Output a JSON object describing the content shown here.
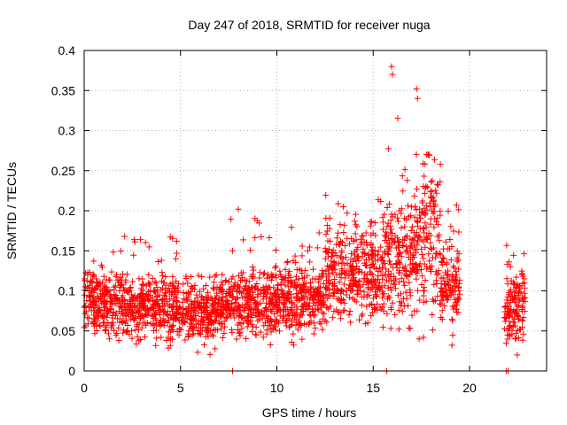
{
  "chart_data": {
    "type": "scatter",
    "title": "Day 247 of 2018, SRMTID for receiver nuga",
    "xlabel": "GPS time / hours",
    "ylabel": "SRMTID / TECUs",
    "xlim": [
      0,
      24
    ],
    "ylim": [
      0,
      0.4
    ],
    "xticks": [
      0,
      5,
      10,
      15,
      20
    ],
    "xtick_labels": [
      "0",
      "5",
      "10",
      "15",
      "20"
    ],
    "yticks": [
      0,
      0.05,
      0.1,
      0.15,
      0.2,
      0.25,
      0.3,
      0.35,
      0.4
    ],
    "ytick_labels": [
      "0",
      "0.05",
      "0.1",
      "0.15",
      "0.2",
      "0.25",
      "0.3",
      "0.35",
      "0.4"
    ],
    "grid": true,
    "marker": "+",
    "series": [
      {
        "name": "SRMTID",
        "color": "#ff0000",
        "segments": [
          {
            "t_start": 0.0,
            "t_end": 2.0,
            "mean": 0.085,
            "spread": 0.02,
            "peak": 0.15
          },
          {
            "t_start": 2.0,
            "t_end": 5.0,
            "mean": 0.08,
            "spread": 0.02,
            "peak": 0.17
          },
          {
            "t_start": 5.0,
            "t_end": 7.5,
            "mean": 0.075,
            "spread": 0.018,
            "peak": 0.12
          },
          {
            "t_start": 7.5,
            "t_end": 10.0,
            "mean": 0.085,
            "spread": 0.02,
            "peak": 0.2
          },
          {
            "t_start": 10.0,
            "t_end": 12.5,
            "mean": 0.09,
            "spread": 0.022,
            "peak": 0.18
          },
          {
            "t_start": 12.5,
            "t_end": 15.5,
            "mean": 0.12,
            "spread": 0.028,
            "peak": 0.23
          },
          {
            "t_start": 15.5,
            "t_end": 16.5,
            "mean": 0.14,
            "spread": 0.04,
            "peak": 0.38
          },
          {
            "t_start": 16.5,
            "t_end": 17.5,
            "mean": 0.15,
            "spread": 0.045,
            "peak": 0.35
          },
          {
            "t_start": 17.5,
            "t_end": 18.5,
            "mean": 0.17,
            "spread": 0.05,
            "peak": 0.27
          },
          {
            "t_start": 18.5,
            "t_end": 19.5,
            "mean": 0.11,
            "spread": 0.03,
            "peak": 0.21
          },
          {
            "t_start": 21.8,
            "t_end": 22.9,
            "mean": 0.085,
            "spread": 0.025,
            "peak": 0.16
          }
        ],
        "outliers": [
          {
            "x": 7.7,
            "y": 0.0
          },
          {
            "x": 15.7,
            "y": 0.0
          },
          {
            "x": 21.9,
            "y": 0.0
          },
          {
            "x": 22.0,
            "y": 0.0
          },
          {
            "x": 15.95,
            "y": 0.38
          },
          {
            "x": 16.0,
            "y": 0.37
          },
          {
            "x": 17.25,
            "y": 0.352
          },
          {
            "x": 17.3,
            "y": 0.34
          },
          {
            "x": 8.0,
            "y": 0.202
          },
          {
            "x": 2.1,
            "y": 0.168
          }
        ]
      }
    ]
  }
}
